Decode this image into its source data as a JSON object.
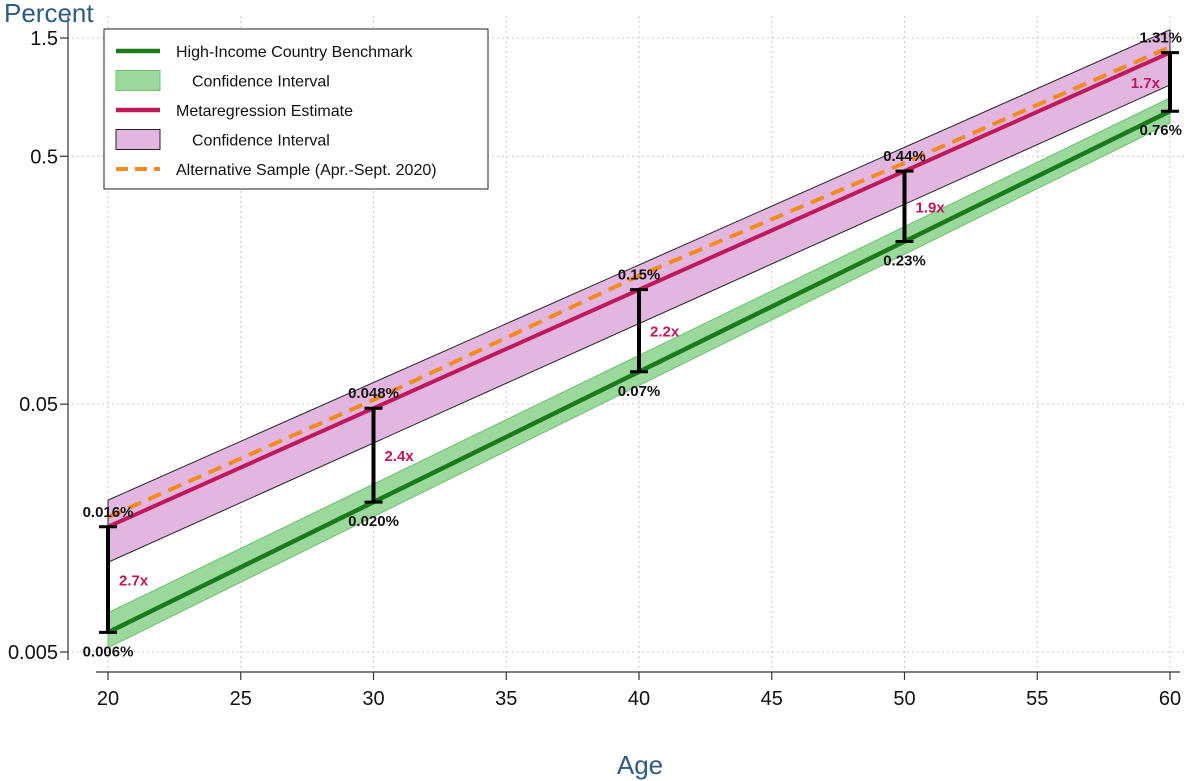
{
  "chart_data": {
    "type": "line",
    "x_axis": {
      "label": "Age",
      "ticks": [
        20,
        25,
        30,
        35,
        40,
        45,
        50,
        55,
        60
      ],
      "range": [
        20,
        60
      ]
    },
    "y_axis": {
      "label": "Percent",
      "scale": "log",
      "ticks": [
        0.005,
        0.05,
        0.5,
        1.5
      ],
      "tick_labels": [
        "0.005",
        "0.05",
        "0.5",
        "1.5"
      ],
      "range": [
        0.0045,
        1.62
      ]
    },
    "grid": "dotted, both axes",
    "legend_position": "top-left",
    "colors": {
      "benchmark": "#1a7a1a",
      "benchmark_ci": "#9bd89b",
      "metaregression": "#c0185a",
      "metaregression_ci": "#e3b6e0",
      "alternative": "#f28a1e",
      "ratio_text": "#c0185a",
      "axis_title": "#2e5c86"
    },
    "series": [
      {
        "name": "High-Income Country Benchmark",
        "style": "solid",
        "x": [
          20,
          60
        ],
        "y": [
          0.006,
          0.76
        ]
      },
      {
        "name": "Confidence Interval",
        "style": "band",
        "x": [
          20,
          60
        ],
        "lower": [
          0.0052,
          0.68
        ],
        "upper": [
          0.0072,
          0.86
        ]
      },
      {
        "name": "Metaregression Estimate",
        "style": "solid",
        "x": [
          20,
          60
        ],
        "y": [
          0.016,
          1.31
        ]
      },
      {
        "name": "Confidence Interval",
        "style": "band",
        "x": [
          20,
          60
        ],
        "lower": [
          0.0115,
          0.97
        ],
        "upper": [
          0.0205,
          1.62
        ]
      },
      {
        "name": "Alternative Sample (Apr.-Sept. 2020)",
        "style": "dashed",
        "x": [
          20,
          30,
          40,
          50,
          60
        ],
        "y": [
          0.0175,
          0.052,
          0.165,
          0.47,
          1.38
        ]
      }
    ],
    "comparisons": [
      {
        "age": 20,
        "high": 0.016,
        "low": 0.006,
        "high_label": "0.016%",
        "low_label": "0.006%",
        "ratio": "2.7x"
      },
      {
        "age": 30,
        "high": 0.048,
        "low": 0.02,
        "high_label": "0.048%",
        "low_label": "0.020%",
        "ratio": "2.4x"
      },
      {
        "age": 40,
        "high": 0.15,
        "low": 0.07,
        "high_label": "0.15%",
        "low_label": "0.07%",
        "ratio": "2.2x"
      },
      {
        "age": 50,
        "high": 0.44,
        "low": 0.23,
        "high_label": "0.44%",
        "low_label": "0.23%",
        "ratio": "1.9x"
      },
      {
        "age": 60,
        "high": 1.31,
        "low": 0.76,
        "high_label": "1.31%",
        "low_label": "0.76%",
        "ratio": "1.7x"
      }
    ]
  }
}
